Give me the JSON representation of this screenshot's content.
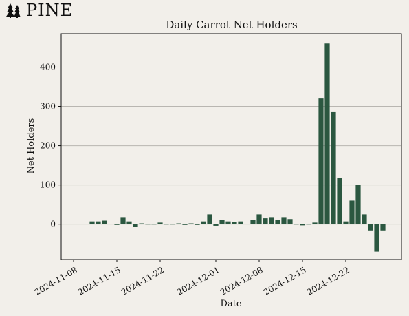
{
  "brand": {
    "name": "PINE",
    "icon": "pine-trees-icon"
  },
  "colors": {
    "bar": "#2b5740",
    "grid": "#b9b6b1",
    "background": "#f2efea"
  },
  "chart_data": {
    "type": "bar",
    "title": "Daily Carrot Net Holders",
    "xlabel": "Date",
    "ylabel": "Net Holders",
    "ylim": [
      -90,
      485
    ],
    "grid": "horizontal",
    "y_ticks": [
      0,
      100,
      200,
      300,
      400
    ],
    "x_ticks": [
      "2024-11-08",
      "2024-11-15",
      "2024-11-22",
      "2024-12-01",
      "2024-12-08",
      "2024-12-15",
      "2024-12-22"
    ],
    "x": [
      "2024-11-10",
      "2024-11-11",
      "2024-11-12",
      "2024-11-13",
      "2024-11-14",
      "2024-11-15",
      "2024-11-16",
      "2024-11-17",
      "2024-11-18",
      "2024-11-19",
      "2024-11-20",
      "2024-11-21",
      "2024-11-22",
      "2024-11-23",
      "2024-11-24",
      "2024-11-25",
      "2024-11-26",
      "2024-11-27",
      "2024-11-28",
      "2024-11-29",
      "2024-11-30",
      "2024-12-01",
      "2024-12-02",
      "2024-12-03",
      "2024-12-04",
      "2024-12-05",
      "2024-12-06",
      "2024-12-07",
      "2024-12-08",
      "2024-12-09",
      "2024-12-10",
      "2024-12-11",
      "2024-12-12",
      "2024-12-13",
      "2024-12-14",
      "2024-12-15",
      "2024-12-16",
      "2024-12-17",
      "2024-12-18",
      "2024-12-19",
      "2024-12-20",
      "2024-12-21",
      "2024-12-22",
      "2024-12-23",
      "2024-12-24",
      "2024-12-25",
      "2024-12-26",
      "2024-12-27",
      "2024-12-28"
    ],
    "values": [
      1,
      7,
      7,
      9,
      1,
      -2,
      18,
      7,
      -7,
      2,
      0,
      0,
      4,
      -1,
      0,
      2,
      -2,
      2,
      -2,
      7,
      25,
      -4,
      11,
      7,
      5,
      7,
      1,
      10,
      25,
      15,
      18,
      10,
      18,
      13,
      -1,
      -3,
      0,
      4,
      320,
      460,
      287,
      118,
      7,
      60,
      100,
      25,
      -16,
      -70,
      -16
    ]
  }
}
